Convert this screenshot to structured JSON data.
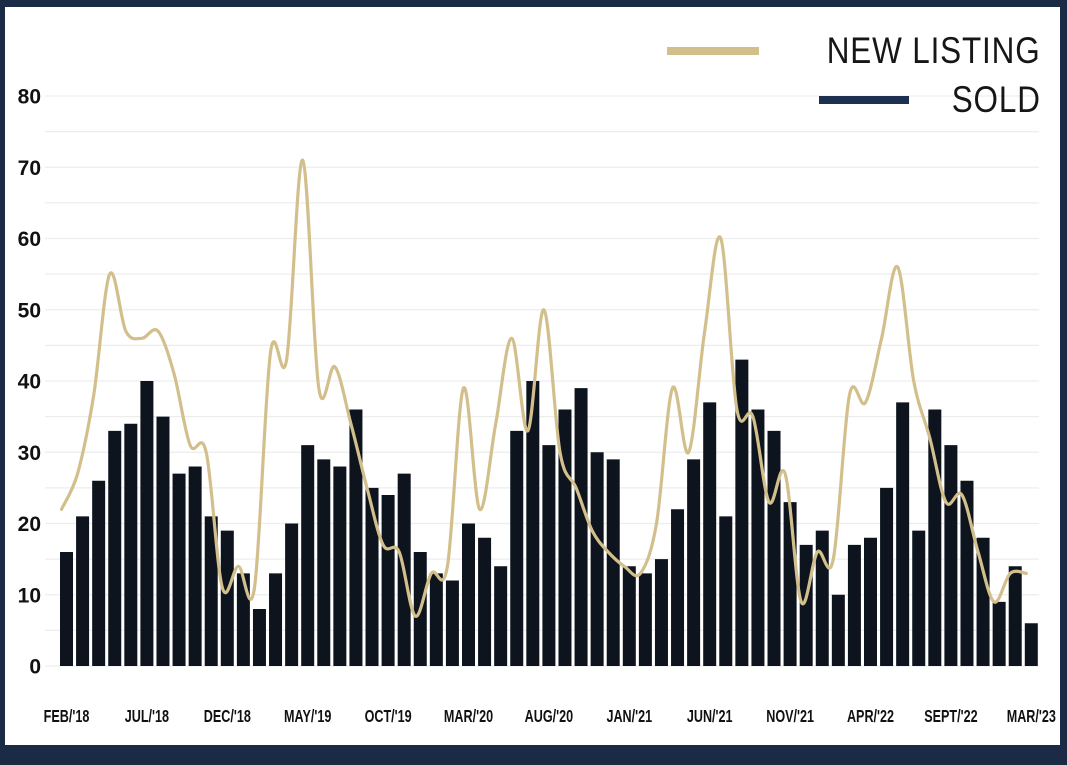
{
  "legend": {
    "new_listing_label": "NEW LISTING",
    "sold_label": "SOLD"
  },
  "colors": {
    "frame": "#1b2b45",
    "bar": "#0d141d",
    "line": "#d2bf8c",
    "sold_swatch": "#1d304f",
    "grid": "#ededed",
    "text": "#161616"
  },
  "chart_data": {
    "type": "bar+line",
    "n_points": 61,
    "ylim": [
      0,
      80
    ],
    "grid_step": 5,
    "grid_on": true,
    "legend_position": "top-right",
    "y_ticks": [
      0,
      10,
      20,
      30,
      40,
      50,
      60,
      70,
      80
    ],
    "x_tick_labels": [
      {
        "index": 0,
        "label": "FEB/'18"
      },
      {
        "index": 5,
        "label": "JUL/'18"
      },
      {
        "index": 10,
        "label": "DEC/'18"
      },
      {
        "index": 15,
        "label": "MAY/'19"
      },
      {
        "index": 20,
        "label": "OCT/'19"
      },
      {
        "index": 25,
        "label": "MAR/'20"
      },
      {
        "index": 30,
        "label": "AUG/'20"
      },
      {
        "index": 35,
        "label": "JAN/'21"
      },
      {
        "index": 40,
        "label": "JUN/'21"
      },
      {
        "index": 45,
        "label": "NOV/'21"
      },
      {
        "index": 50,
        "label": "APR/'22"
      },
      {
        "index": 55,
        "label": "SEPT/'22"
      },
      {
        "index": 60,
        "label": "MAR/'23"
      }
    ],
    "series": [
      {
        "name": "NEW LISTING",
        "type": "line",
        "values": [
          22,
          27,
          38,
          55,
          47,
          46,
          47,
          41,
          31,
          30,
          11,
          14,
          11,
          44,
          43,
          71,
          39,
          42,
          34,
          25,
          17,
          16,
          7,
          13,
          14,
          39,
          22,
          34,
          46,
          33,
          50,
          30,
          25,
          19,
          16,
          14,
          13,
          20,
          39,
          30,
          47,
          60,
          36,
          35,
          23,
          27,
          9,
          16,
          15,
          38,
          37,
          46,
          56,
          40,
          32,
          23,
          24,
          16,
          9,
          13,
          13
        ]
      },
      {
        "name": "SOLD",
        "type": "bar",
        "values": [
          16,
          21,
          26,
          33,
          34,
          40,
          35,
          27,
          28,
          21,
          19,
          13,
          8,
          13,
          20,
          31,
          29,
          28,
          36,
          25,
          24,
          27,
          16,
          13,
          12,
          20,
          18,
          14,
          33,
          40,
          31,
          36,
          39,
          30,
          29,
          14,
          13,
          15,
          22,
          29,
          37,
          21,
          43,
          36,
          33,
          23,
          17,
          19,
          10,
          17,
          18,
          25,
          37,
          19,
          36,
          31,
          26,
          18,
          9,
          14,
          6
        ]
      }
    ]
  }
}
